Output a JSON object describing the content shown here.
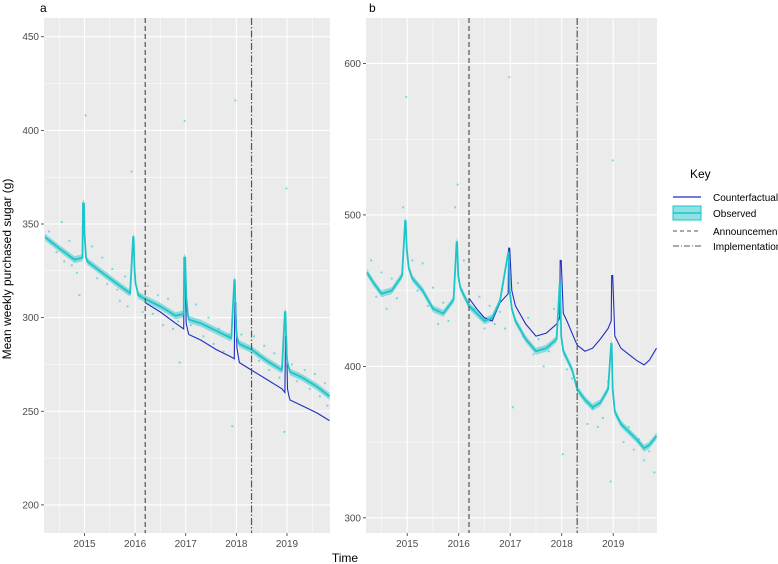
{
  "chart_data": [
    {
      "type": "line",
      "panel_tag": "a",
      "xlim": [
        2014.2,
        2019.85
      ],
      "ylim": [
        185,
        460
      ],
      "x_ticks": [
        2015,
        2016,
        2017,
        2018,
        2019
      ],
      "x_tick_labels": [
        "2015",
        "2016",
        "2017",
        "2018",
        "2019"
      ],
      "y_ticks": [
        200,
        250,
        300,
        350,
        400,
        450
      ],
      "y_tick_labels": [
        "200",
        "250",
        "300",
        "350",
        "400",
        "450"
      ],
      "announcement_x": 2016.2,
      "implementation_x": 2018.3,
      "series": [
        {
          "key": "Observed",
          "x": [
            2014.22,
            2014.5,
            2014.8,
            2014.96,
            2014.97,
            2014.99,
            2015.0,
            2015.03,
            2015.06,
            2015.3,
            2015.6,
            2015.9,
            2015.96,
            2015.97,
            2015.99,
            2016.01,
            2016.04,
            2016.06,
            2016.2,
            2016.5,
            2016.8,
            2016.96,
            2016.97,
            2016.99,
            2017.01,
            2017.04,
            2017.06,
            2017.3,
            2017.6,
            2017.9,
            2017.96,
            2017.97,
            2017.99,
            2018.01,
            2018.04,
            2018.06,
            2018.3,
            2018.6,
            2018.9,
            2018.96,
            2018.97,
            2018.99,
            2019.01,
            2019.04,
            2019.06,
            2019.3,
            2019.6,
            2019.84
          ],
          "y": [
            343,
            337,
            331,
            332,
            361,
            361,
            345,
            332,
            330,
            325,
            319,
            313,
            343,
            343,
            325,
            318,
            315,
            312,
            310,
            306,
            301,
            302,
            332,
            332,
            312,
            302,
            299,
            297,
            293,
            289,
            320,
            320,
            298,
            290,
            287,
            286,
            283,
            277,
            272,
            303,
            303,
            281,
            276,
            273,
            271,
            268,
            263,
            258
          ]
        },
        {
          "key": "Counterfactual",
          "x": [
            2016.2,
            2016.5,
            2016.8,
            2016.96,
            2016.97,
            2016.99,
            2017.01,
            2017.04,
            2017.06,
            2017.3,
            2017.6,
            2017.9,
            2017.96,
            2017.97,
            2017.99,
            2018.01,
            2018.04,
            2018.06,
            2018.3,
            2018.6,
            2018.9,
            2018.96,
            2018.97,
            2018.99,
            2019.01,
            2019.04,
            2019.06,
            2019.3,
            2019.6,
            2019.84
          ],
          "y": [
            308,
            303,
            297,
            294,
            322,
            322,
            297,
            293,
            291,
            288,
            283,
            279,
            278,
            308,
            308,
            284,
            279,
            276,
            272,
            267,
            262,
            260,
            290,
            290,
            262,
            258,
            256,
            253,
            249,
            245
          ]
        }
      ],
      "scatter_points": [
        [
          2014.3,
          346
        ],
        [
          2014.35,
          340
        ],
        [
          2014.45,
          335
        ],
        [
          2014.55,
          351
        ],
        [
          2014.6,
          330
        ],
        [
          2014.7,
          341
        ],
        [
          2014.75,
          328
        ],
        [
          2014.85,
          324
        ],
        [
          2014.9,
          312
        ],
        [
          2015.02,
          408
        ],
        [
          2015.1,
          329
        ],
        [
          2015.15,
          338
        ],
        [
          2015.25,
          321
        ],
        [
          2015.35,
          332
        ],
        [
          2015.45,
          318
        ],
        [
          2015.55,
          326
        ],
        [
          2015.65,
          315
        ],
        [
          2015.7,
          309
        ],
        [
          2015.8,
          322
        ],
        [
          2015.85,
          306
        ],
        [
          2015.93,
          378
        ],
        [
          2016.1,
          312
        ],
        [
          2016.15,
          303
        ],
        [
          2016.25,
          317
        ],
        [
          2016.35,
          302
        ],
        [
          2016.45,
          312
        ],
        [
          2016.55,
          296
        ],
        [
          2016.65,
          310
        ],
        [
          2016.75,
          294
        ],
        [
          2016.85,
          298
        ],
        [
          2016.88,
          276
        ],
        [
          2016.98,
          405
        ],
        [
          2017.1,
          296
        ],
        [
          2017.2,
          307
        ],
        [
          2017.35,
          290
        ],
        [
          2017.45,
          300
        ],
        [
          2017.55,
          286
        ],
        [
          2017.65,
          294
        ],
        [
          2017.75,
          282
        ],
        [
          2017.85,
          291
        ],
        [
          2017.92,
          242
        ],
        [
          2017.98,
          416
        ],
        [
          2018.1,
          291
        ],
        [
          2018.2,
          284
        ],
        [
          2018.35,
          290
        ],
        [
          2018.45,
          277
        ],
        [
          2018.55,
          285
        ],
        [
          2018.65,
          272
        ],
        [
          2018.75,
          281
        ],
        [
          2018.85,
          268
        ],
        [
          2018.95,
          239
        ],
        [
          2018.99,
          369
        ],
        [
          2019.1,
          275
        ],
        [
          2019.2,
          266
        ],
        [
          2019.35,
          272
        ],
        [
          2019.45,
          262
        ],
        [
          2019.55,
          270
        ],
        [
          2019.65,
          258
        ],
        [
          2019.75,
          265
        ],
        [
          2019.8,
          253
        ]
      ]
    },
    {
      "type": "line",
      "panel_tag": "b",
      "xlim": [
        2014.2,
        2019.85
      ],
      "ylim": [
        290,
        630
      ],
      "x_ticks": [
        2015,
        2016,
        2017,
        2018,
        2019
      ],
      "x_tick_labels": [
        "2015",
        "2016",
        "2017",
        "2018",
        "2019"
      ],
      "y_ticks": [
        300,
        400,
        500,
        600
      ],
      "y_tick_labels": [
        "300",
        "400",
        "500",
        "600"
      ],
      "announcement_x": 2016.2,
      "implementation_x": 2018.3,
      "series": [
        {
          "key": "Observed",
          "x": [
            2014.22,
            2014.35,
            2014.5,
            2014.7,
            2014.9,
            2014.96,
            2014.97,
            2014.99,
            2015.03,
            2015.1,
            2015.3,
            2015.5,
            2015.7,
            2015.9,
            2015.96,
            2015.97,
            2015.99,
            2016.03,
            2016.1,
            2016.2,
            2016.35,
            2016.5,
            2016.65,
            2016.8,
            2016.96,
            2016.97,
            2016.99,
            2017.03,
            2017.1,
            2017.3,
            2017.5,
            2017.7,
            2017.9,
            2017.96,
            2017.97,
            2017.99,
            2018.03,
            2018.1,
            2018.2,
            2018.3,
            2018.45,
            2018.6,
            2018.75,
            2018.9,
            2018.96,
            2018.97,
            2018.99,
            2019.03,
            2019.15,
            2019.3,
            2019.45,
            2019.6,
            2019.7,
            2019.84
          ],
          "y": [
            462,
            455,
            448,
            450,
            460,
            496,
            496,
            478,
            465,
            458,
            450,
            438,
            435,
            444,
            482,
            482,
            460,
            452,
            447,
            440,
            435,
            430,
            432,
            443,
            475,
            475,
            450,
            438,
            430,
            418,
            410,
            412,
            418,
            455,
            455,
            420,
            410,
            405,
            398,
            385,
            378,
            373,
            376,
            385,
            415,
            415,
            385,
            370,
            362,
            357,
            352,
            346,
            348,
            354
          ]
        },
        {
          "key": "Counterfactual",
          "x": [
            2016.2,
            2016.35,
            2016.5,
            2016.65,
            2016.8,
            2016.96,
            2016.97,
            2016.99,
            2017.03,
            2017.1,
            2017.3,
            2017.5,
            2017.7,
            2017.9,
            2017.96,
            2017.97,
            2017.99,
            2018.03,
            2018.1,
            2018.2,
            2018.3,
            2018.45,
            2018.6,
            2018.75,
            2018.9,
            2018.96,
            2018.97,
            2018.99,
            2019.03,
            2019.15,
            2019.3,
            2019.45,
            2019.6,
            2019.7,
            2019.84
          ],
          "y": [
            445,
            438,
            432,
            430,
            442,
            448,
            478,
            478,
            450,
            440,
            428,
            420,
            422,
            428,
            432,
            470,
            470,
            435,
            430,
            422,
            414,
            410,
            412,
            418,
            425,
            430,
            460,
            460,
            420,
            412,
            408,
            404,
            401,
            404,
            412
          ]
        }
      ],
      "scatter_points": [
        [
          2014.3,
          470
        ],
        [
          2014.4,
          446
        ],
        [
          2014.5,
          462
        ],
        [
          2014.6,
          438
        ],
        [
          2014.7,
          458
        ],
        [
          2014.8,
          445
        ],
        [
          2014.92,
          505
        ],
        [
          2014.98,
          578
        ],
        [
          2015.1,
          470
        ],
        [
          2015.2,
          450
        ],
        [
          2015.3,
          468
        ],
        [
          2015.4,
          440
        ],
        [
          2015.5,
          452
        ],
        [
          2015.6,
          428
        ],
        [
          2015.7,
          442
        ],
        [
          2015.8,
          430
        ],
        [
          2015.93,
          505
        ],
        [
          2015.98,
          520
        ],
        [
          2016.1,
          470
        ],
        [
          2016.2,
          455
        ],
        [
          2016.3,
          438
        ],
        [
          2016.4,
          446
        ],
        [
          2016.5,
          425
        ],
        [
          2016.6,
          440
        ],
        [
          2016.7,
          428
        ],
        [
          2016.8,
          436
        ],
        [
          2016.9,
          425
        ],
        [
          2016.98,
          591
        ],
        [
          2017.05,
          373
        ],
        [
          2017.15,
          455
        ],
        [
          2017.25,
          420
        ],
        [
          2017.35,
          432
        ],
        [
          2017.45,
          408
        ],
        [
          2017.55,
          418
        ],
        [
          2017.65,
          400
        ],
        [
          2017.75,
          410
        ],
        [
          2017.85,
          438
        ],
        [
          2017.95,
          432
        ],
        [
          2018.02,
          342
        ],
        [
          2018.1,
          398
        ],
        [
          2018.2,
          392
        ],
        [
          2018.3,
          366
        ],
        [
          2018.4,
          380
        ],
        [
          2018.5,
          362
        ],
        [
          2018.6,
          372
        ],
        [
          2018.7,
          360
        ],
        [
          2018.8,
          366
        ],
        [
          2018.9,
          390
        ],
        [
          2018.95,
          324
        ],
        [
          2018.99,
          536
        ],
        [
          2019.1,
          365
        ],
        [
          2019.2,
          350
        ],
        [
          2019.3,
          360
        ],
        [
          2019.4,
          345
        ],
        [
          2019.5,
          352
        ],
        [
          2019.6,
          338
        ],
        [
          2019.7,
          344
        ],
        [
          2019.8,
          330
        ]
      ]
    }
  ],
  "shared_xlabel": "Time",
  "shared_ylabel": "Mean weekly purchased sugar (g)",
  "legend": {
    "title": "Key",
    "items": [
      {
        "label": "Counterfactual",
        "style": "solid-line"
      },
      {
        "label": "Observed",
        "style": "ribbon"
      },
      {
        "label": "Announcement",
        "style": "dashed"
      },
      {
        "label": "Implementation",
        "style": "dotdash"
      }
    ]
  },
  "colors": {
    "observed": "#1cc5c9",
    "observed_band": "#6fd3d6",
    "counterfactual": "#1f2fbf",
    "panel_bg": "#ebebeb",
    "grid": "#ffffff",
    "vline": "#555555"
  }
}
